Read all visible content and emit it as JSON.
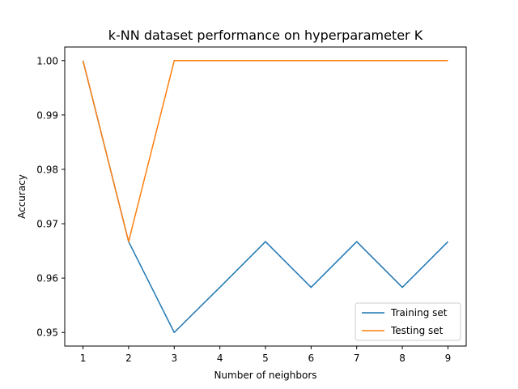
{
  "chart_data": {
    "type": "line",
    "title": "k-NN dataset performance on hyperparameter K",
    "xlabel": "Number of neighbors",
    "ylabel": "Accuracy",
    "x": [
      1,
      2,
      3,
      4,
      5,
      6,
      7,
      8,
      9
    ],
    "xlim": [
      0.6,
      9.4
    ],
    "ylim": [
      0.9475,
      1.0025
    ],
    "xticks": [
      "1",
      "2",
      "3",
      "4",
      "5",
      "6",
      "7",
      "8",
      "9"
    ],
    "yticks": [
      "0.95",
      "0.96",
      "0.97",
      "0.98",
      "0.99",
      "1.00"
    ],
    "grid": false,
    "legend_position": "bottom-right",
    "series": [
      {
        "name": "Training set",
        "color": "#1f77b4",
        "values": [
          1.0,
          0.9667,
          0.95,
          0.9583,
          0.9667,
          0.9583,
          0.9667,
          0.9583,
          0.9667
        ]
      },
      {
        "name": "Testing set",
        "color": "#ff7f0e",
        "values": [
          1.0,
          0.9667,
          1.0,
          1.0,
          1.0,
          1.0,
          1.0,
          1.0,
          1.0
        ]
      }
    ]
  }
}
